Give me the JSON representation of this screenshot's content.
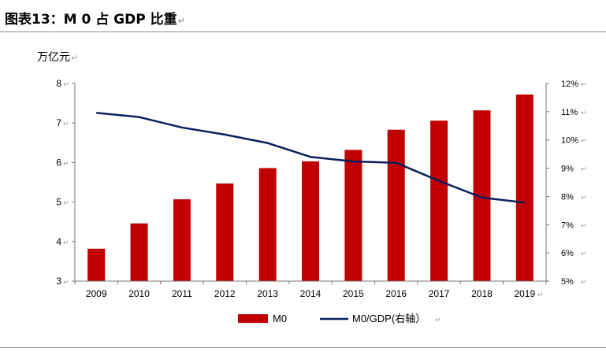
{
  "header": {
    "title": "图表13：M 0 占 GDP 比重",
    "return_mark": "↵"
  },
  "unit_label": "万亿元",
  "chart_data": {
    "type": "bar+line",
    "title": "图表13：M 0 占 GDP 比重",
    "ylabel": "万亿元",
    "categories": [
      "2009",
      "2010",
      "2011",
      "2012",
      "2013",
      "2014",
      "2015",
      "2016",
      "2017",
      "2018",
      "2019"
    ],
    "series": [
      {
        "name": "M0",
        "type": "bar",
        "axis": "left",
        "color": "#c00000",
        "values": [
          3.82,
          4.46,
          5.07,
          5.47,
          5.86,
          6.03,
          6.32,
          6.83,
          7.06,
          7.32,
          7.72
        ]
      },
      {
        "name": "M0/GDP(右轴）",
        "type": "line",
        "axis": "right",
        "color": "#0a1f5c",
        "values": [
          10.96,
          10.81,
          10.44,
          10.19,
          9.89,
          9.4,
          9.24,
          9.19,
          8.55,
          7.96,
          7.78
        ]
      }
    ],
    "left_axis": {
      "min": 3,
      "max": 8,
      "ticks": [
        "3",
        "4",
        "5",
        "6",
        "7",
        "8"
      ]
    },
    "right_axis": {
      "min": 5,
      "max": 12,
      "ticks": [
        "5%",
        "6%",
        "7%",
        "8%",
        "9%",
        "10%",
        "11%",
        "12%"
      ]
    },
    "legend": {
      "placement": "bottom-center"
    }
  }
}
